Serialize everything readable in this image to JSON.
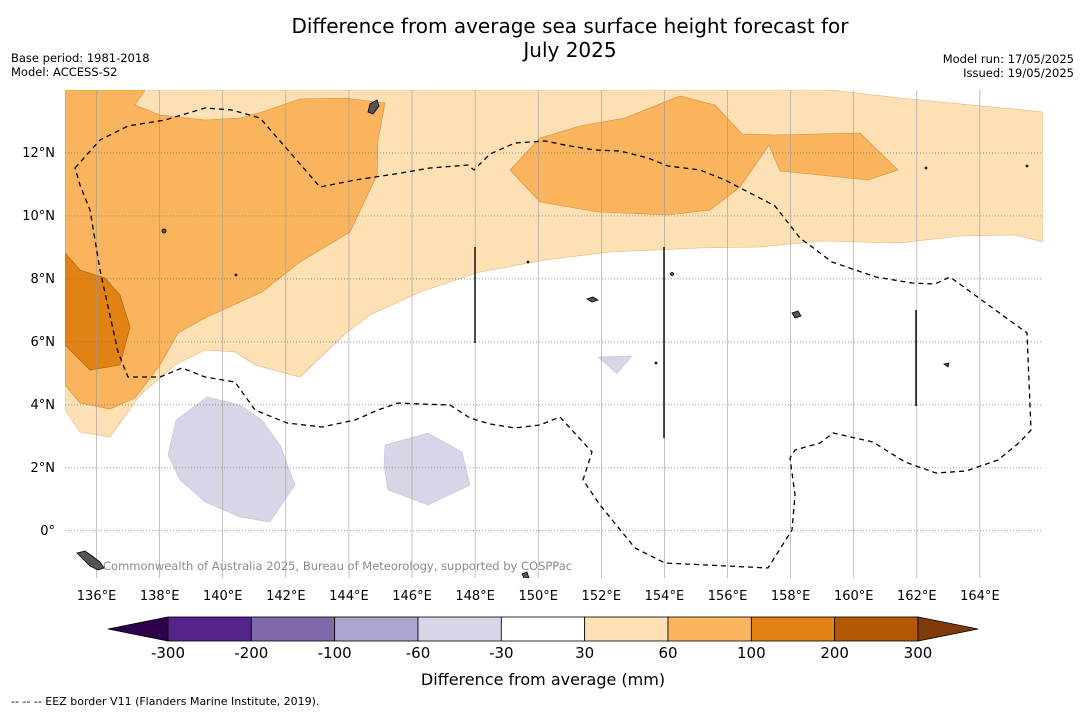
{
  "header": {
    "title_line1": "Difference from average sea surface height forecast for",
    "title_line2": "July 2025",
    "base_period": "Base period: 1981-2018",
    "model": "Model: ACCESS-S2",
    "model_run": "Model run: 17/05/2025",
    "issued": "Issued: 19/05/2025"
  },
  "footer": {
    "eez_note": "--  --  -- EEZ border V11 (Flanders Marine Institute, 2019).",
    "credit": "Commonwealth of Australia 2025, Bureau of Meteorology, supported by COSPPac"
  },
  "chart_data": {
    "type": "heatmap",
    "title": "Difference from average sea surface height forecast for July 2025",
    "x_axis": {
      "range": [
        135,
        166
      ],
      "ticks": [
        136,
        138,
        140,
        142,
        144,
        146,
        148,
        150,
        152,
        154,
        156,
        158,
        160,
        162,
        164
      ],
      "tick_labels": [
        "136°E",
        "138°E",
        "140°E",
        "142°E",
        "144°E",
        "146°E",
        "148°E",
        "150°E",
        "152°E",
        "154°E",
        "156°E",
        "158°E",
        "160°E",
        "162°E",
        "164°E"
      ]
    },
    "y_axis": {
      "range": [
        -1.5,
        14
      ],
      "ticks": [
        0,
        2,
        4,
        6,
        8,
        10,
        12
      ],
      "tick_labels": [
        "0°",
        "2°N",
        "4°N",
        "6°N",
        "8°N",
        "10°N",
        "12°N"
      ]
    },
    "grid": true,
    "colorbar": {
      "label": "Difference from average (mm)",
      "tick_labels": [
        "-300",
        "-200",
        "-100",
        "-60",
        "-30",
        "30",
        "60",
        "100",
        "200",
        "300"
      ],
      "colors": [
        "#55248a",
        "#7e6aab",
        "#aba5cf",
        "#d6d6e8",
        "#ffffff",
        "#fde0b4",
        "#fab45e",
        "#e08214",
        "#b35806"
      ],
      "under_color": "#2d004b",
      "over_color": "#7f3b08"
    },
    "regions": [
      {
        "name": "30 to 60 mm",
        "color": "#fde0b4",
        "extent": "north of about 4-9°N across 135-166°E"
      },
      {
        "name": "60 to 100 mm",
        "color": "#fab45e",
        "extent": "west of 147°E north of 4°N; 150-160°E near 10-13.5°N"
      },
      {
        "name": "100 to 200 mm",
        "color": "#e08214",
        "extent": "135-137°E, 5-9°N"
      },
      {
        "name": "-60 to -30 mm",
        "color": "#d6d6e8",
        "extent": "138-142°E 0-4°N; 146-149°E 1-3°N; 152°E 5°N"
      }
    ]
  }
}
